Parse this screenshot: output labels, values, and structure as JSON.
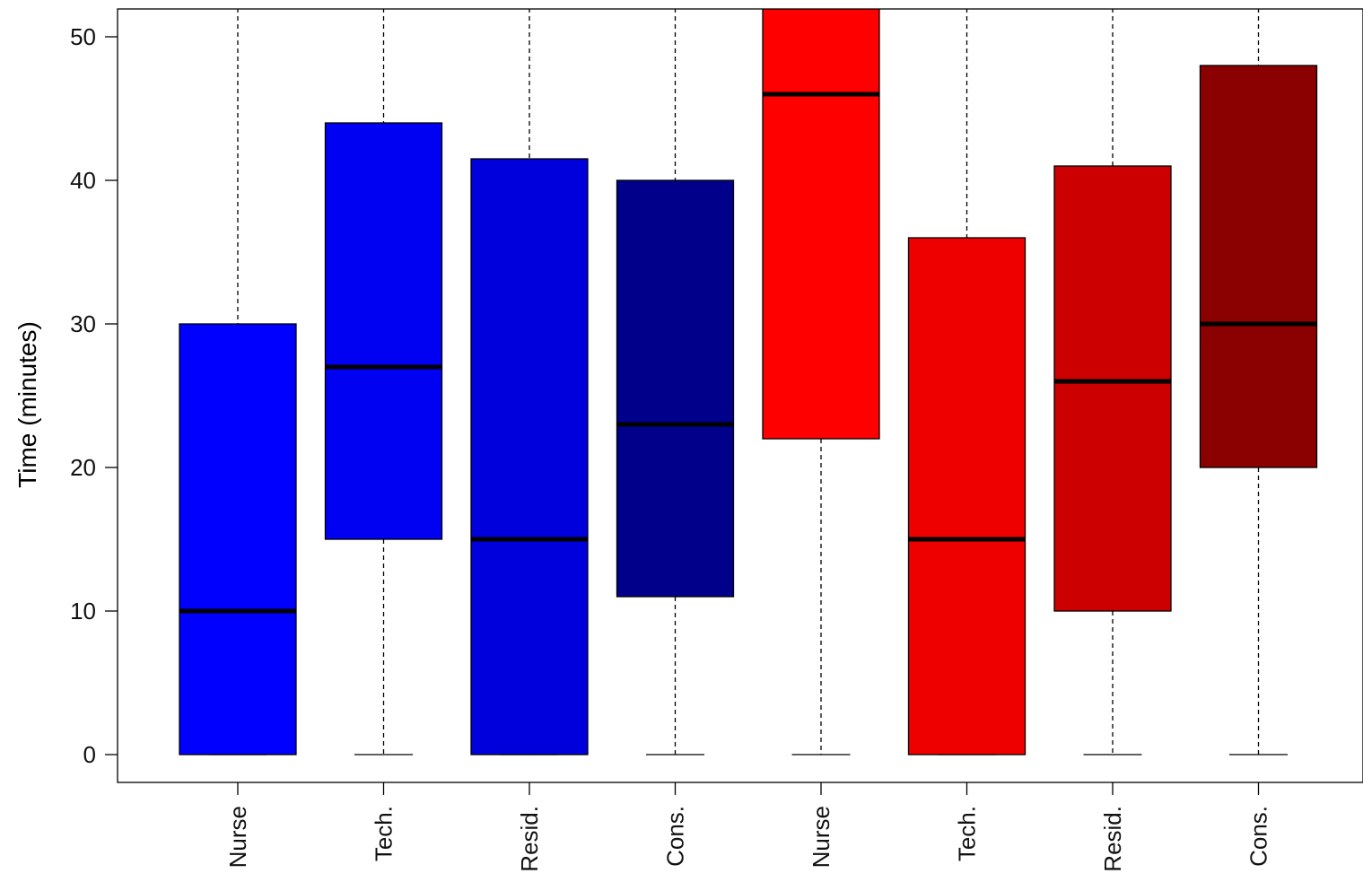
{
  "chart_data": {
    "type": "boxplot",
    "title": "",
    "xlabel": "",
    "ylabel": "Time (minutes)",
    "ylim": [
      -2,
      52
    ],
    "yticks": [
      0,
      10,
      20,
      30,
      40,
      50
    ],
    "grid": false,
    "categories": [
      "Nurse",
      "Tech.",
      "Resid.",
      "Cons.",
      "Nurse",
      "Tech.",
      "Resid.",
      "Cons."
    ],
    "boxes": [
      {
        "label": "Nurse",
        "whisker_low": 0,
        "q1": 0,
        "median": 10,
        "q3": 30,
        "whisker_high": 52,
        "color": "#0000FF"
      },
      {
        "label": "Tech.",
        "whisker_low": 0,
        "q1": 15,
        "median": 27,
        "q3": 44,
        "whisker_high": 52,
        "color": "#0000F2"
      },
      {
        "label": "Resid.",
        "whisker_low": 0,
        "q1": 0,
        "median": 15,
        "q3": 41.5,
        "whisker_high": 52,
        "color": "#0000DD"
      },
      {
        "label": "Cons.",
        "whisker_low": 0,
        "q1": 11,
        "median": 23,
        "q3": 40,
        "whisker_high": 52,
        "color": "#00008B"
      },
      {
        "label": "Nurse",
        "whisker_low": 0,
        "q1": 22,
        "median": 46,
        "q3": 52,
        "whisker_high": 52,
        "color": "#FF0000"
      },
      {
        "label": "Tech.",
        "whisker_low": 0,
        "q1": 0,
        "median": 15,
        "q3": 36,
        "whisker_high": 52,
        "color": "#EE0000"
      },
      {
        "label": "Resid.",
        "whisker_low": 0,
        "q1": 10,
        "median": 26,
        "q3": 41,
        "whisker_high": 52,
        "color": "#CC0000"
      },
      {
        "label": "Cons.",
        "whisker_low": 0,
        "q1": 20,
        "median": 30,
        "q3": 48,
        "whisker_high": 52,
        "color": "#8B0000"
      }
    ]
  }
}
